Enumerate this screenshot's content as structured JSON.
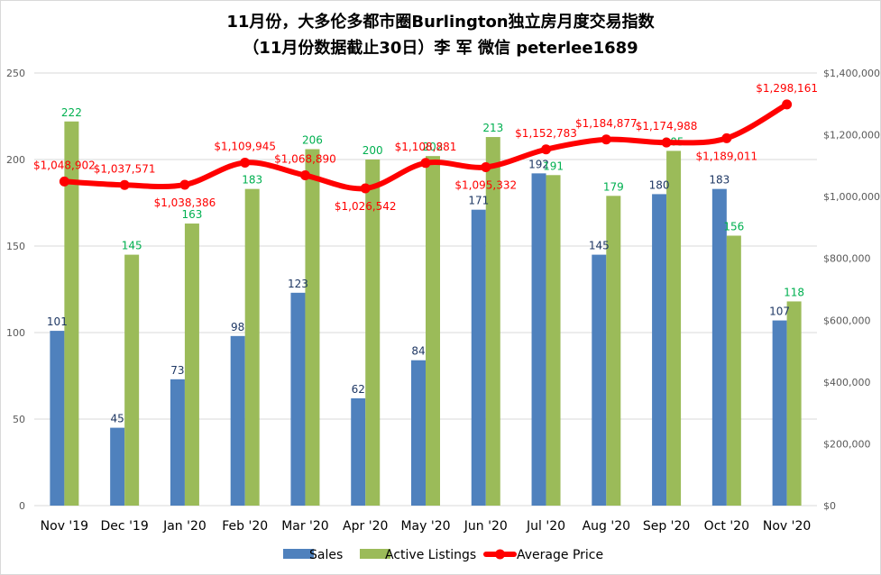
{
  "chart_data": {
    "type": "bar",
    "title_line1": "11月份，大多伦多都市圈Burlington独立房月度交易指数",
    "title_line2": "（11月份数据截止30日）李 军  微信  peterlee1689",
    "categories": [
      "Nov '19",
      "Dec '19",
      "Jan '20",
      "Feb '20",
      "Mar '20",
      "Apr '20",
      "May '20",
      "Jun '20",
      "Jul '20",
      "Aug '20",
      "Sep '20",
      "Oct '20",
      "Nov '20"
    ],
    "series": [
      {
        "name": "Sales",
        "kind": "bar",
        "axis": "left",
        "color": "#4f81bd",
        "values": [
          101,
          45,
          73,
          98,
          123,
          62,
          84,
          171,
          192,
          145,
          180,
          183,
          107
        ]
      },
      {
        "name": "Active Listings",
        "kind": "bar",
        "axis": "left",
        "color": "#9bbb59",
        "values": [
          222,
          145,
          163,
          183,
          206,
          200,
          202,
          213,
          191,
          179,
          205,
          156,
          118
        ]
      },
      {
        "name": "Average Price",
        "kind": "line",
        "axis": "right",
        "color": "#ff0000",
        "values": [
          1048902,
          1037571,
          1038386,
          1109945,
          1068890,
          1026542,
          1108881,
          1095332,
          1152783,
          1184877,
          1174988,
          1189011,
          1298161
        ],
        "labels": [
          "$1,048,902",
          "$1,037,571",
          "$1,038,386",
          "$1,109,945",
          "$1,068,890",
          "$1,026,542",
          "$1,108,881",
          "$1,095,332",
          "$1,152,783",
          "$1,184,877",
          "$1,174,988",
          "$1,189,011",
          "$1,298,161"
        ]
      }
    ],
    "y_left": {
      "min": 0,
      "max": 250,
      "ticks": [
        "0",
        "50",
        "100",
        "150",
        "200",
        "250"
      ]
    },
    "y_right": {
      "min": 0,
      "max": 1400000,
      "ticks": [
        "$0",
        "$200,000",
        "$400,000",
        "$600,000",
        "$800,000",
        "$1,000,000",
        "$1,200,000",
        "$1,400,000"
      ]
    },
    "grid": true,
    "legend_position": "bottom",
    "label_colors": {
      "sales": "#1f3864",
      "listings": "#00b050",
      "price": "#ff0000",
      "axis": "#595959",
      "grid": "#d9d9d9"
    }
  }
}
